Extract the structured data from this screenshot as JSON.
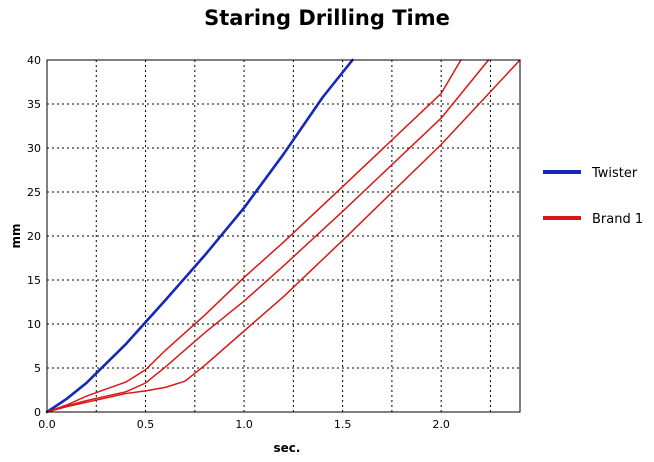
{
  "chart_data": {
    "type": "line",
    "title": "Staring Drilling Time",
    "xlabel": "sec.",
    "ylabel": "mm",
    "xlim": [
      0,
      2.4
    ],
    "ylim": [
      0,
      40
    ],
    "xticks": [
      "0.0",
      "0.5",
      "1.0",
      "1.5",
      "2.0"
    ],
    "xtick_values": [
      0,
      0.5,
      1.0,
      1.5,
      2.0
    ],
    "yticks": [
      "0",
      "5",
      "10",
      "15",
      "20",
      "25",
      "30",
      "35",
      "40"
    ],
    "ytick_values": [
      0,
      5,
      10,
      15,
      20,
      25,
      30,
      35,
      40
    ],
    "grid": true,
    "grid_style": "dotted",
    "legend_position": "right",
    "legend": [
      {
        "label": "Twister",
        "color": "#1528b8"
      },
      {
        "label": "Brand 1",
        "color": "#d81818"
      }
    ],
    "series": [
      {
        "name": "Twister",
        "color": "#1528b8",
        "x": [
          0,
          0.1,
          0.2,
          0.3,
          0.4,
          0.5,
          0.6,
          0.8,
          1.0,
          1.2,
          1.4,
          1.55
        ],
        "y": [
          0,
          1.5,
          3.3,
          5.5,
          7.7,
          10.2,
          12.7,
          17.8,
          23.2,
          29.3,
          35.8,
          40
        ]
      },
      {
        "name": "Brand 1",
        "color": "#d81818",
        "x": [
          0,
          0.1,
          0.2,
          0.3,
          0.4,
          0.5,
          0.6,
          0.8,
          1.0,
          1.2,
          1.5,
          2.0,
          2.1
        ],
        "y": [
          0,
          0.8,
          1.8,
          2.6,
          3.4,
          4.8,
          7.0,
          11.0,
          15.3,
          19.3,
          25.6,
          36.2,
          40
        ]
      },
      {
        "name": "Brand 1",
        "color": "#d81818",
        "x": [
          0,
          0.1,
          0.2,
          0.3,
          0.4,
          0.5,
          0.6,
          0.8,
          1.0,
          1.2,
          1.5,
          2.0,
          2.24
        ],
        "y": [
          0,
          0.7,
          1.3,
          1.8,
          2.3,
          3.3,
          5.1,
          9.0,
          12.6,
          16.6,
          22.8,
          33.4,
          40
        ]
      },
      {
        "name": "Brand 1",
        "color": "#d81818",
        "x": [
          0,
          0.1,
          0.2,
          0.3,
          0.4,
          0.5,
          0.6,
          0.7,
          0.8,
          1.0,
          1.2,
          1.5,
          2.0,
          2.4
        ],
        "y": [
          0,
          0.6,
          1.1,
          1.6,
          2.1,
          2.4,
          2.8,
          3.5,
          5.3,
          9.2,
          13.1,
          19.5,
          30.4,
          40
        ]
      }
    ]
  }
}
